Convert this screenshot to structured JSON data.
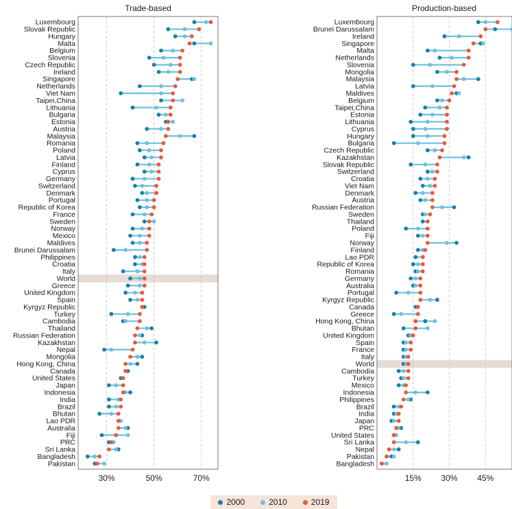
{
  "colors": {
    "y2000": "#1a7fa8",
    "y2010": "#6ec0e0",
    "y2019": "#e8593c",
    "band": "#e6dcd6",
    "grid": "#bfbfbf"
  },
  "legend": {
    "y2000": "2000",
    "y2010": "2010",
    "y2019": "2019"
  },
  "chart_data": [
    {
      "type": "dot-range",
      "title": "Trade-based",
      "xlim": [
        18,
        77
      ],
      "xticks": [
        30,
        50,
        70
      ],
      "xtick_labels": [
        "30%",
        "50%",
        "70%"
      ],
      "grid": true,
      "highlight": "World",
      "series_names": [
        "2000",
        "2010",
        "2019"
      ],
      "rows": [
        {
          "c": "Luxembourg",
          "v": [
            67,
            72,
            74
          ]
        },
        {
          "c": "Slovak Republic",
          "v": [
            56,
            63,
            69
          ]
        },
        {
          "c": "Hungary",
          "v": [
            59,
            63,
            66
          ]
        },
        {
          "c": "Malta",
          "v": [
            67,
            74,
            65
          ]
        },
        {
          "c": "Belgium",
          "v": [
            53,
            58,
            62
          ]
        },
        {
          "c": "Slovenia",
          "v": [
            48,
            54,
            61
          ]
        },
        {
          "c": "Czech Republic",
          "v": [
            50,
            57,
            61
          ]
        },
        {
          "c": "Ireland",
          "v": [
            52,
            56,
            61
          ]
        },
        {
          "c": "Singapore",
          "v": [
            66,
            67,
            60
          ]
        },
        {
          "c": "Netherlands",
          "v": [
            44,
            53,
            59
          ]
        },
        {
          "c": "Viet Nam",
          "v": [
            36,
            53,
            58
          ]
        },
        {
          "c": "Taipei,China",
          "v": [
            53,
            62,
            58
          ]
        },
        {
          "c": "Lithuania",
          "v": [
            41,
            51,
            57
          ]
        },
        {
          "c": "Bulgaria",
          "v": [
            52,
            55,
            57
          ]
        },
        {
          "c": "Estonia",
          "v": [
            55,
            58,
            56
          ]
        },
        {
          "c": "Austria",
          "v": [
            47,
            53,
            56
          ]
        },
        {
          "c": "Malaysia",
          "v": [
            67,
            61,
            55
          ]
        },
        {
          "c": "Romania",
          "v": [
            43,
            47,
            54
          ]
        },
        {
          "c": "Poland",
          "v": [
            44,
            48,
            53
          ]
        },
        {
          "c": "Latvia",
          "v": [
            46,
            49,
            53
          ]
        },
        {
          "c": "Finland",
          "v": [
            43,
            48,
            52
          ]
        },
        {
          "c": "Cyprus",
          "v": [
            46,
            49,
            52
          ]
        },
        {
          "c": "Germany",
          "v": [
            41,
            46,
            52
          ]
        },
        {
          "c": "Switzerland",
          "v": [
            42,
            45,
            51
          ]
        },
        {
          "c": "Denmark",
          "v": [
            45,
            47,
            51
          ]
        },
        {
          "c": "Portugal",
          "v": [
            43,
            47,
            50
          ]
        },
        {
          "c": "Republic of Korea",
          "v": [
            44,
            47,
            50
          ]
        },
        {
          "c": "France",
          "v": [
            41,
            46,
            49
          ]
        },
        {
          "c": "Sweden",
          "v": [
            46,
            50,
            48
          ]
        },
        {
          "c": "Norway",
          "v": [
            41,
            45,
            48
          ]
        },
        {
          "c": "Mexico",
          "v": [
            40,
            44,
            48
          ]
        },
        {
          "c": "Maldives",
          "v": [
            41,
            44,
            47
          ]
        },
        {
          "c": "Brunei Darussalam",
          "v": [
            33,
            38,
            47
          ]
        },
        {
          "c": "Philippines",
          "v": [
            42,
            44,
            46
          ]
        },
        {
          "c": "Croatia",
          "v": [
            42,
            45,
            46
          ]
        },
        {
          "c": "Italy",
          "v": [
            37,
            43,
            46
          ]
        },
        {
          "c": "World",
          "v": [
            40,
            44,
            46
          ]
        },
        {
          "c": "Greece",
          "v": [
            39,
            44,
            46
          ]
        },
        {
          "c": "United Kingdom",
          "v": [
            38,
            42,
            45
          ]
        },
        {
          "c": "Spain",
          "v": [
            40,
            43,
            45
          ]
        },
        {
          "c": "Kyrgyz Republic",
          "v": [
            46,
            45,
            45
          ]
        },
        {
          "c": "Turkey",
          "v": [
            32,
            39,
            44
          ]
        },
        {
          "c": "Cambodia",
          "v": [
            37,
            38,
            44
          ]
        },
        {
          "c": "Thailand",
          "v": [
            49,
            47,
            43
          ]
        },
        {
          "c": "Russian Federation",
          "v": [
            45,
            44,
            42
          ]
        },
        {
          "c": "Kazakhstan",
          "v": [
            51,
            46,
            42
          ]
        },
        {
          "c": "Nepal",
          "v": [
            29,
            32,
            41
          ]
        },
        {
          "c": "Mongolia",
          "v": [
            45,
            43,
            40
          ]
        },
        {
          "c": "Hong Kong, China",
          "v": [
            43,
            40,
            38
          ]
        },
        {
          "c": "Canada",
          "v": [
            39,
            38,
            38
          ]
        },
        {
          "c": "United States",
          "v": [
            36,
            37,
            37
          ]
        },
        {
          "c": "Japan",
          "v": [
            31,
            34,
            37
          ]
        },
        {
          "c": "Indonesia",
          "v": [
            40,
            38,
            37
          ]
        },
        {
          "c": "India",
          "v": [
            31,
            35,
            36
          ]
        },
        {
          "c": "Brazil",
          "v": [
            31,
            34,
            36
          ]
        },
        {
          "c": "Bhutan",
          "v": [
            27,
            32,
            35
          ]
        },
        {
          "c": "Lao PDR",
          "v": [
            35,
            36,
            35
          ]
        },
        {
          "c": "Australia",
          "v": [
            39,
            38,
            35
          ]
        },
        {
          "c": "Fiji",
          "v": [
            28,
            39,
            34
          ]
        },
        {
          "c": "PRC",
          "v": [
            31,
            33,
            32
          ]
        },
        {
          "c": "Sri Lanka",
          "v": [
            35,
            34,
            31
          ]
        },
        {
          "c": "Bangladesh",
          "v": [
            22,
            25,
            27
          ]
        },
        {
          "c": "Pakistan",
          "v": [
            25,
            29,
            26
          ]
        }
      ]
    },
    {
      "type": "dot-range",
      "title": "Production-based",
      "xlim": [
        0,
        56
      ],
      "xticks": [
        15,
        30,
        45
      ],
      "xtick_labels": [
        "15%",
        "30%",
        "45%"
      ],
      "grid": true,
      "highlight": "World",
      "series_names": [
        "2000",
        "2010",
        "2019"
      ],
      "rows": [
        {
          "c": "Luxembourg",
          "v": [
            42,
            45,
            50
          ]
        },
        {
          "c": "Brunei Darussalam",
          "v": [
            49,
            56,
            45
          ]
        },
        {
          "c": "Ireland",
          "v": [
            28,
            34,
            43
          ]
        },
        {
          "c": "Singapore",
          "v": [
            43,
            44,
            40
          ]
        },
        {
          "c": "Malta",
          "v": [
            21,
            24,
            38
          ]
        },
        {
          "c": "Netherlands",
          "v": [
            26,
            31,
            38
          ]
        },
        {
          "c": "Slovenia",
          "v": [
            15,
            22,
            36
          ]
        },
        {
          "c": "Mongolia",
          "v": [
            25,
            29,
            33
          ]
        },
        {
          "c": "Malaysia",
          "v": [
            42,
            36,
            33
          ]
        },
        {
          "c": "Latvia",
          "v": [
            15,
            23,
            32
          ]
        },
        {
          "c": "Maldives",
          "v": [
            33,
            34,
            31
          ]
        },
        {
          "c": "Belgium",
          "v": [
            25,
            27,
            30
          ]
        },
        {
          "c": "Taipei,China",
          "v": [
            20,
            26,
            29
          ]
        },
        {
          "c": "Estonia",
          "v": [
            18,
            23,
            29
          ]
        },
        {
          "c": "Lithuania",
          "v": [
            14,
            21,
            29
          ]
        },
        {
          "c": "Cyprus",
          "v": [
            15,
            20,
            29
          ]
        },
        {
          "c": "Hungary",
          "v": [
            15,
            21,
            28
          ]
        },
        {
          "c": "Bulgaria",
          "v": [
            7,
            17,
            28
          ]
        },
        {
          "c": "Czech Republic",
          "v": [
            21,
            24,
            27
          ]
        },
        {
          "c": "Kazakhstan",
          "v": [
            38,
            36,
            26
          ]
        },
        {
          "c": "Slovak Republic",
          "v": [
            14,
            20,
            25
          ]
        },
        {
          "c": "Switzerland",
          "v": [
            21,
            23,
            25
          ]
        },
        {
          "c": "Croatia",
          "v": [
            18,
            21,
            24
          ]
        },
        {
          "c": "Viet Nam",
          "v": [
            19,
            22,
            24
          ]
        },
        {
          "c": "Denmark",
          "v": [
            16,
            19,
            23
          ]
        },
        {
          "c": "Austria",
          "v": [
            18,
            20,
            23
          ]
        },
        {
          "c": "Russian Federation",
          "v": [
            32,
            27,
            23
          ]
        },
        {
          "c": "Sweden",
          "v": [
            19,
            20,
            22
          ]
        },
        {
          "c": "Thailand",
          "v": [
            19,
            21,
            21
          ]
        },
        {
          "c": "Poland",
          "v": [
            12,
            17,
            21
          ]
        },
        {
          "c": "Fiji",
          "v": [
            17,
            19,
            21
          ]
        },
        {
          "c": "Norway",
          "v": [
            33,
            29,
            21
          ]
        },
        {
          "c": "Finland",
          "v": [
            17,
            19,
            20
          ]
        },
        {
          "c": "Lao PDR",
          "v": [
            16,
            19,
            19
          ]
        },
        {
          "c": "Republic of Korea",
          "v": [
            15,
            17,
            19
          ]
        },
        {
          "c": "Romania",
          "v": [
            16,
            17,
            19
          ]
        },
        {
          "c": "Germany",
          "v": [
            14,
            16,
            18
          ]
        },
        {
          "c": "Australia",
          "v": [
            15,
            16,
            18
          ]
        },
        {
          "c": "Portugal",
          "v": [
            8,
            13,
            18
          ]
        },
        {
          "c": "Kyrgyz Republic",
          "v": [
            25,
            22,
            18
          ]
        },
        {
          "c": "Canada",
          "v": [
            16,
            17,
            17
          ]
        },
        {
          "c": "Greece",
          "v": [
            7,
            10,
            17
          ]
        },
        {
          "c": "Hong Kong, China",
          "v": [
            20,
            24,
            16
          ]
        },
        {
          "c": "Bhutan",
          "v": [
            11,
            21,
            16
          ]
        },
        {
          "c": "United Kingdom",
          "v": [
            13,
            14,
            15
          ]
        },
        {
          "c": "Spain",
          "v": [
            11,
            12,
            14
          ]
        },
        {
          "c": "France",
          "v": [
            11,
            12,
            14
          ]
        },
        {
          "c": "Italy",
          "v": [
            11,
            12,
            13
          ]
        },
        {
          "c": "World",
          "v": [
            11,
            12,
            13
          ]
        },
        {
          "c": "Cambodia",
          "v": [
            9,
            11,
            13
          ]
        },
        {
          "c": "Turkey",
          "v": [
            10,
            11,
            13
          ]
        },
        {
          "c": "Mexico",
          "v": [
            9,
            11,
            12
          ]
        },
        {
          "c": "Indonesia",
          "v": [
            21,
            16,
            12
          ]
        },
        {
          "c": "Philippines",
          "v": [
            14,
            13,
            11
          ]
        },
        {
          "c": "Brazil",
          "v": [
            7,
            9,
            10
          ]
        },
        {
          "c": "India",
          "v": [
            7,
            8,
            9
          ]
        },
        {
          "c": "Japan",
          "v": [
            6,
            7,
            9
          ]
        },
        {
          "c": "PRC",
          "v": [
            10,
            9,
            8
          ]
        },
        {
          "c": "United States",
          "v": [
            7,
            8,
            7
          ]
        },
        {
          "c": "Sri Lanka",
          "v": [
            17,
            12,
            7
          ]
        },
        {
          "c": "Nepal",
          "v": [
            9,
            7,
            5
          ]
        },
        {
          "c": "Pakistan",
          "v": [
            6,
            7,
            4
          ]
        },
        {
          "c": "Bangladesh",
          "v": [
            2,
            4,
            2
          ]
        }
      ]
    }
  ]
}
